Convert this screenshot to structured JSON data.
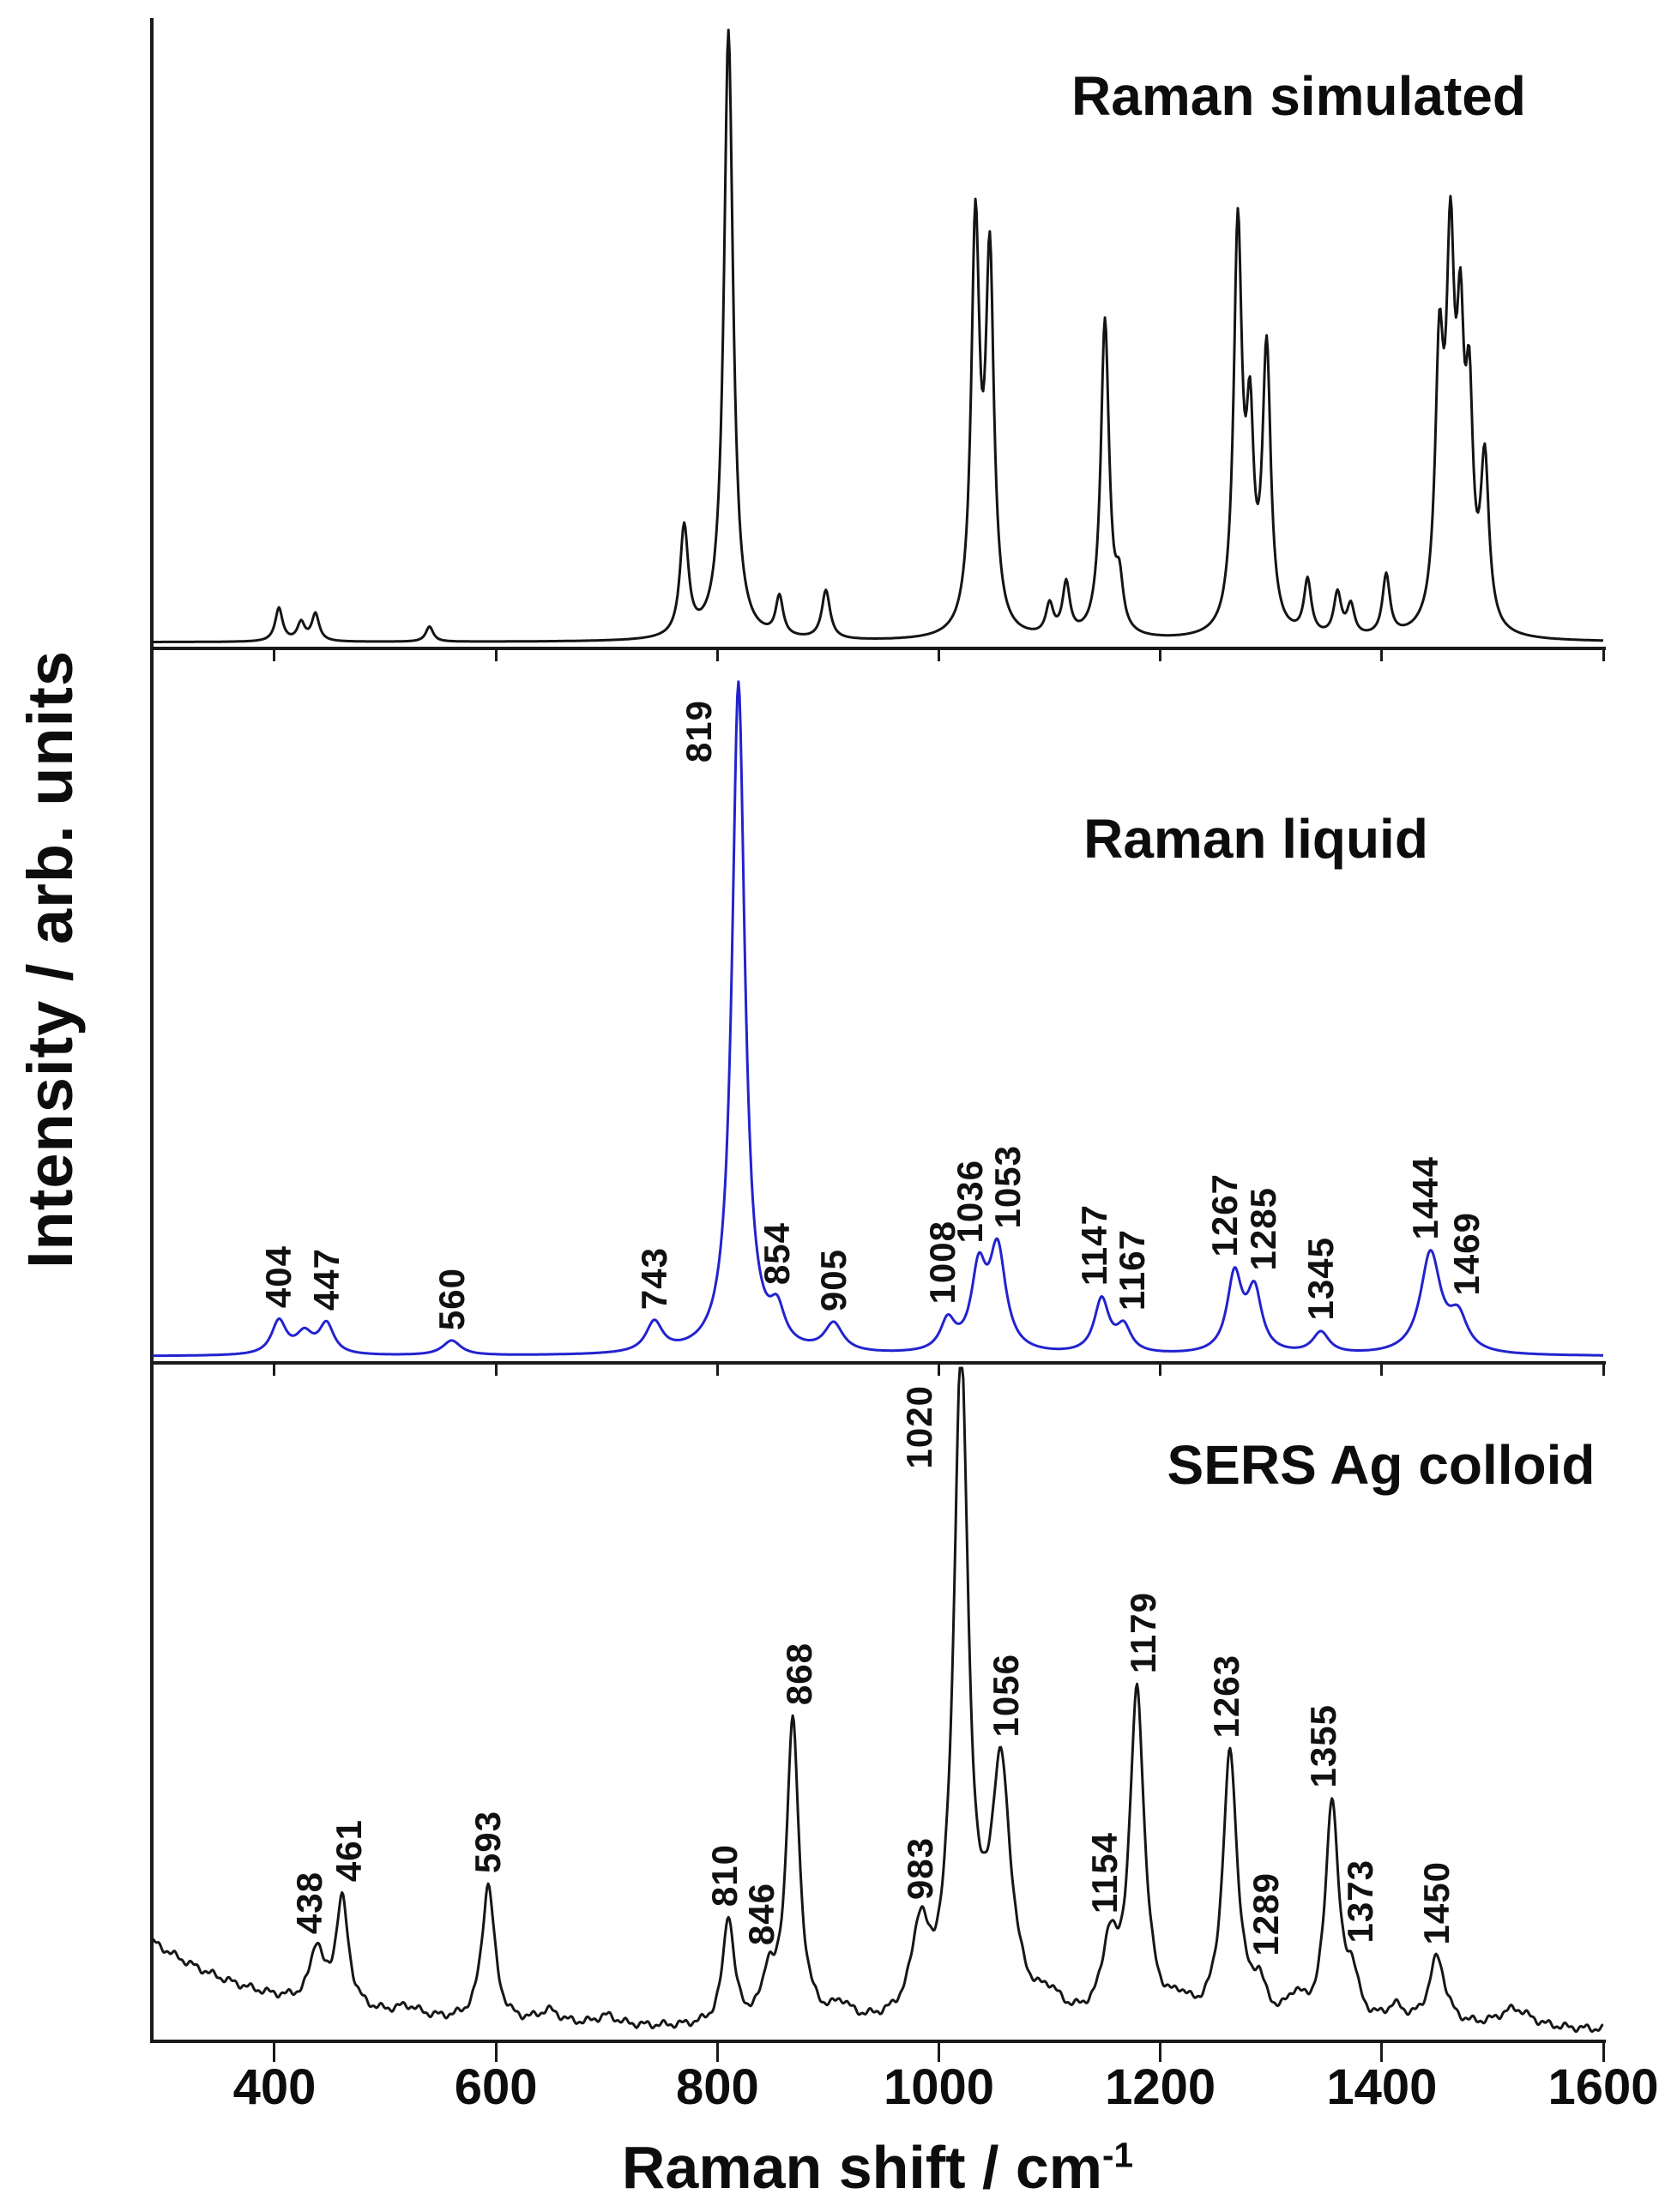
{
  "axes": {
    "xlim": [
      290,
      1600
    ],
    "xticks": [
      400,
      600,
      800,
      1000,
      1200,
      1400,
      1600
    ],
    "xlabel": "Raman shift / cm",
    "xlabel_sup": "-1",
    "ylabel": "Intensity / arb. units"
  },
  "chart_data": [
    {
      "type": "line",
      "title": "Raman simulated",
      "color": "#141414",
      "yscale": 0.97,
      "base": 0.006,
      "xlabelled": false,
      "peaks": [
        {
          "x": 404,
          "h": 0.055,
          "w": 4
        },
        {
          "x": 424,
          "h": 0.03,
          "w": 4
        },
        {
          "x": 437,
          "h": 0.045,
          "w": 4
        },
        {
          "x": 540,
          "h": 0.025,
          "w": 4
        },
        {
          "x": 770,
          "h": 0.18,
          "w": 4.5
        },
        {
          "x": 810,
          "h": 1.0,
          "w": 5
        },
        {
          "x": 856,
          "h": 0.065,
          "w": 4
        },
        {
          "x": 898,
          "h": 0.08,
          "w": 4.5
        },
        {
          "x": 1033,
          "h": 0.66,
          "w": 4.5
        },
        {
          "x": 1046,
          "h": 0.6,
          "w": 4.5
        },
        {
          "x": 1100,
          "h": 0.05,
          "w": 4
        },
        {
          "x": 1115,
          "h": 0.085,
          "w": 4
        },
        {
          "x": 1150,
          "h": 0.52,
          "w": 4.5
        },
        {
          "x": 1163,
          "h": 0.075,
          "w": 4
        },
        {
          "x": 1270,
          "h": 0.66,
          "w": 4.5
        },
        {
          "x": 1281,
          "h": 0.3,
          "w": 4
        },
        {
          "x": 1296,
          "h": 0.46,
          "w": 4.5
        },
        {
          "x": 1333,
          "h": 0.09,
          "w": 4
        },
        {
          "x": 1360,
          "h": 0.07,
          "w": 4
        },
        {
          "x": 1372,
          "h": 0.05,
          "w": 4
        },
        {
          "x": 1404,
          "h": 0.1,
          "w": 4
        },
        {
          "x": 1452,
          "h": 0.42,
          "w": 4.5
        },
        {
          "x": 1462,
          "h": 0.57,
          "w": 4.5
        },
        {
          "x": 1471,
          "h": 0.4,
          "w": 4
        },
        {
          "x": 1479,
          "h": 0.33,
          "w": 4
        },
        {
          "x": 1493,
          "h": 0.27,
          "w": 4.5
        }
      ]
    },
    {
      "type": "line",
      "title": "Raman liquid",
      "color": "#2222cf",
      "yscale": 0.94,
      "base": 0.006,
      "peaks": [
        {
          "x": 404,
          "h": 0.05,
          "w": 8,
          "label": true
        },
        {
          "x": 427,
          "h": 0.03,
          "w": 9
        },
        {
          "x": 447,
          "h": 0.045,
          "w": 8,
          "label": true
        },
        {
          "x": 560,
          "h": 0.022,
          "w": 10,
          "label": true
        },
        {
          "x": 743,
          "h": 0.045,
          "w": 9,
          "label": true
        },
        {
          "x": 819,
          "h": 1.0,
          "w": 7,
          "label": true,
          "top": 60,
          "dx": -46
        },
        {
          "x": 854,
          "h": 0.05,
          "w": 8,
          "label": true
        },
        {
          "x": 905,
          "h": 0.042,
          "w": 10,
          "label": true
        },
        {
          "x": 1008,
          "h": 0.045,
          "w": 8,
          "label": true,
          "dx": -6
        },
        {
          "x": 1036,
          "h": 0.115,
          "w": 8,
          "label": true,
          "dx": -10
        },
        {
          "x": 1053,
          "h": 0.15,
          "w": 9,
          "label": true,
          "dx": 12
        },
        {
          "x": 1147,
          "h": 0.08,
          "w": 8,
          "label": true,
          "dx": -8
        },
        {
          "x": 1167,
          "h": 0.038,
          "w": 8,
          "label": true,
          "dx": 10
        },
        {
          "x": 1267,
          "h": 0.115,
          "w": 8,
          "label": true,
          "dx": -11
        },
        {
          "x": 1285,
          "h": 0.09,
          "w": 8,
          "label": true,
          "dx": 11
        },
        {
          "x": 1345,
          "h": 0.032,
          "w": 9,
          "label": true
        },
        {
          "x": 1444,
          "h": 0.15,
          "w": 11,
          "label": true,
          "dx": -6
        },
        {
          "x": 1469,
          "h": 0.05,
          "w": 10,
          "label": true,
          "dx": 10
        }
      ]
    },
    {
      "type": "line",
      "title": "SERS Ag colloid",
      "color": "#161616",
      "yscale": 0.97,
      "base": 0.012,
      "noise": 0.004,
      "background": {
        "amp": 0.135,
        "decay": 115
      },
      "peaks": [
        {
          "x": 438,
          "h": 0.085,
          "w": 7,
          "label": true,
          "dx": -8
        },
        {
          "x": 461,
          "h": 0.165,
          "w": 7,
          "label": true,
          "dx": 8
        },
        {
          "x": 520,
          "h": 0.015,
          "w": 14
        },
        {
          "x": 593,
          "h": 0.21,
          "w": 7,
          "label": true
        },
        {
          "x": 648,
          "h": 0.02,
          "w": 12
        },
        {
          "x": 700,
          "h": 0.015,
          "w": 12
        },
        {
          "x": 810,
          "h": 0.165,
          "w": 6,
          "label": true,
          "dx": -4
        },
        {
          "x": 846,
          "h": 0.065,
          "w": 6,
          "label": true,
          "dx": -8
        },
        {
          "x": 868,
          "h": 0.46,
          "w": 7,
          "label": true,
          "dx": 8
        },
        {
          "x": 912,
          "h": 0.025,
          "w": 10
        },
        {
          "x": 983,
          "h": 0.13,
          "w": 9,
          "label": true
        },
        {
          "x": 1020,
          "h": 1.0,
          "w": 8,
          "label": true,
          "top": 26,
          "dx": -48
        },
        {
          "x": 1056,
          "h": 0.37,
          "w": 11,
          "label": true,
          "dx": 6
        },
        {
          "x": 1100,
          "h": 0.03,
          "w": 12
        },
        {
          "x": 1154,
          "h": 0.105,
          "w": 8,
          "label": true,
          "dx": -5
        },
        {
          "x": 1179,
          "h": 0.5,
          "w": 8,
          "label": true,
          "dx": 7
        },
        {
          "x": 1218,
          "h": 0.025,
          "w": 10
        },
        {
          "x": 1263,
          "h": 0.41,
          "w": 8,
          "label": true,
          "dx": -4
        },
        {
          "x": 1289,
          "h": 0.05,
          "w": 7,
          "label": true,
          "dx": 8
        },
        {
          "x": 1322,
          "h": 0.035,
          "w": 9
        },
        {
          "x": 1355,
          "h": 0.34,
          "w": 7,
          "label": true,
          "dx": -10
        },
        {
          "x": 1373,
          "h": 0.065,
          "w": 7,
          "label": true,
          "dx": 10
        },
        {
          "x": 1412,
          "h": 0.025,
          "w": 10
        },
        {
          "x": 1450,
          "h": 0.105,
          "w": 9,
          "label": true
        },
        {
          "x": 1520,
          "h": 0.03,
          "w": 18
        }
      ]
    }
  ]
}
